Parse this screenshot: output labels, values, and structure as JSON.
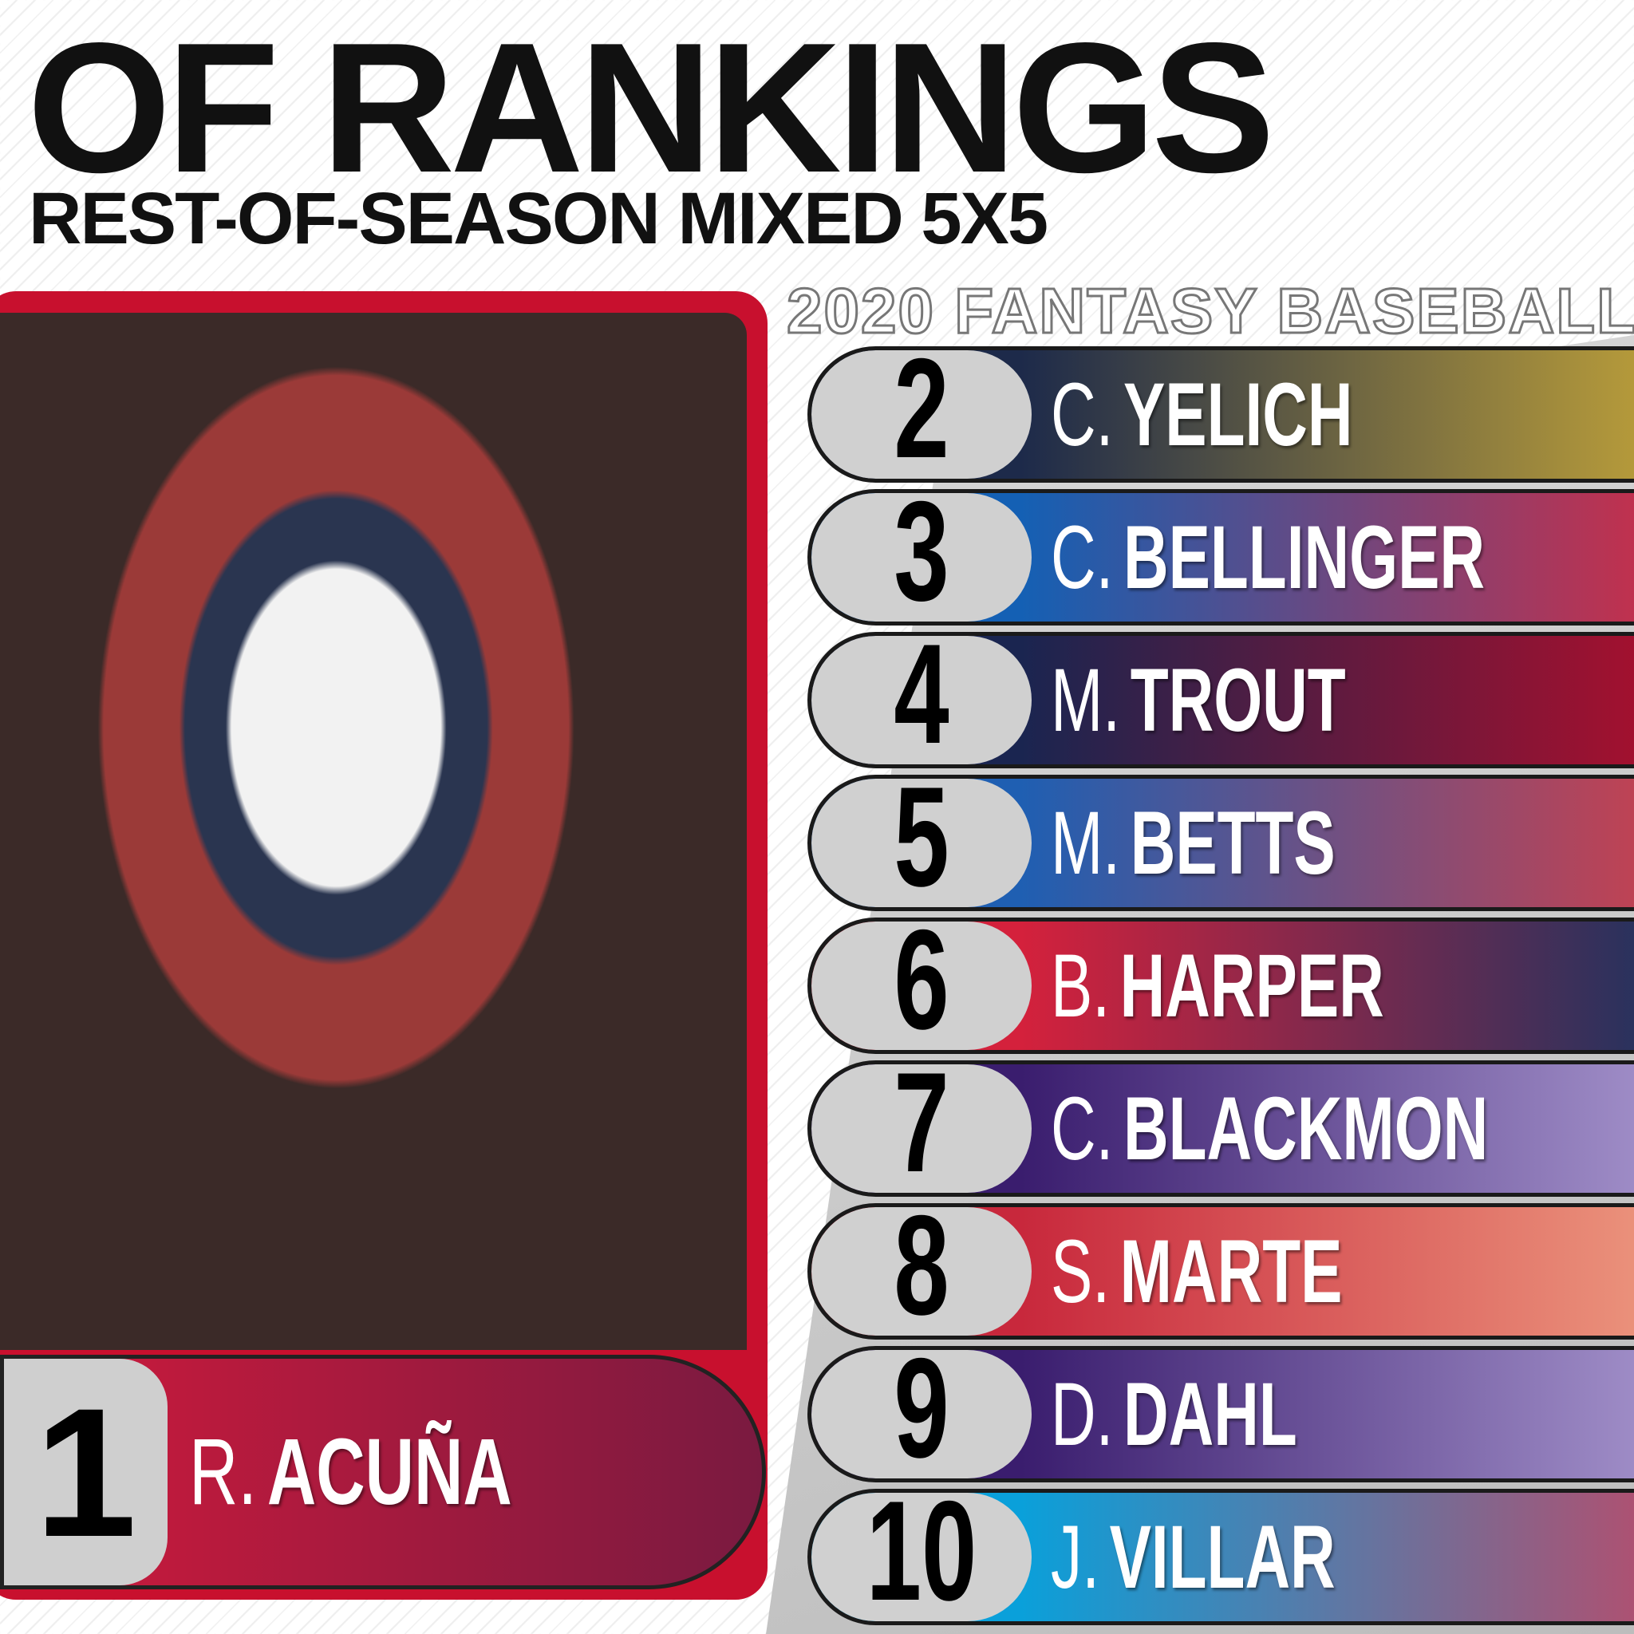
{
  "header": {
    "title": "OF RANKINGS",
    "subtitle": "REST-OF-SEASON MIXED 5X5",
    "tagline": "2020 FANTASY BASEBALL"
  },
  "featured": {
    "rank": "1",
    "initial": "R.",
    "name": "ACUÑA"
  },
  "rankings": [
    {
      "rank": "2",
      "initial": "C.",
      "name": "YELICH"
    },
    {
      "rank": "3",
      "initial": "C.",
      "name": "BELLINGER"
    },
    {
      "rank": "4",
      "initial": "M.",
      "name": "TROUT"
    },
    {
      "rank": "5",
      "initial": "M.",
      "name": "BETTS"
    },
    {
      "rank": "6",
      "initial": "B.",
      "name": "HARPER"
    },
    {
      "rank": "7",
      "initial": "C.",
      "name": "BLACKMON"
    },
    {
      "rank": "8",
      "initial": "S.",
      "name": "MARTE"
    },
    {
      "rank": "9",
      "initial": "D.",
      "name": "DAHL"
    },
    {
      "rank": "10",
      "initial": "J.",
      "name": "VILLAR"
    }
  ]
}
